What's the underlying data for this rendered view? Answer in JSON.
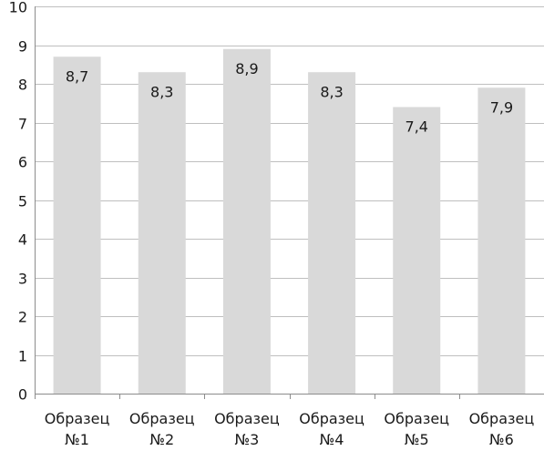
{
  "chart_data": {
    "type": "bar",
    "title": "",
    "xlabel": "",
    "ylabel": "",
    "categories": [
      [
        "Образец",
        "№1"
      ],
      [
        "Образец",
        "№2"
      ],
      [
        "Образец",
        "№3"
      ],
      [
        "Образец",
        "№4"
      ],
      [
        "Образец",
        "№5"
      ],
      [
        "Образец",
        "№6"
      ]
    ],
    "values": [
      8.7,
      8.3,
      8.9,
      8.3,
      7.4,
      7.9
    ],
    "value_labels": [
      "8,7",
      "8,3",
      "8,9",
      "8,3",
      "7,4",
      "7,9"
    ],
    "ylim": [
      0,
      10
    ],
    "yticks": [
      "0",
      "1",
      "2",
      "3",
      "4",
      "5",
      "6",
      "7",
      "8",
      "9",
      "10"
    ],
    "grid": true,
    "legend": "none",
    "colors": {
      "bar": "#d9d9d9",
      "grid": "#bfbfbf",
      "axis": "#8c8c8c",
      "text": "#1a1a1a"
    }
  }
}
